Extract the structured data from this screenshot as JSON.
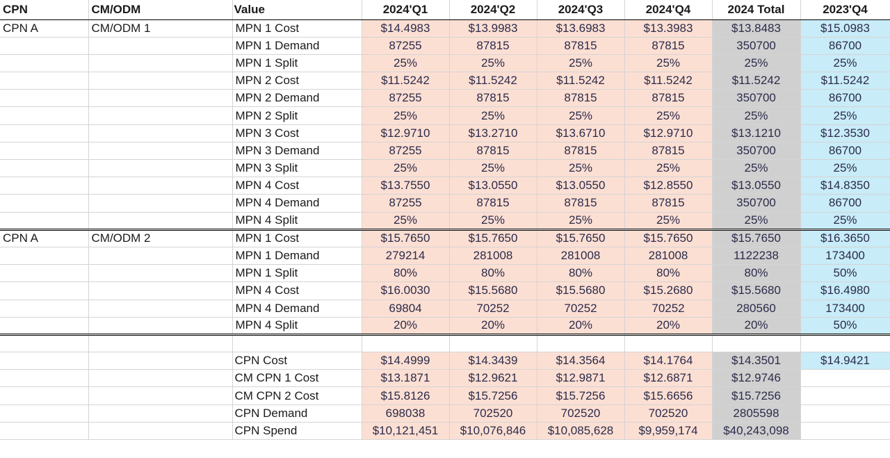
{
  "headers": [
    "CPN",
    "CM/ODM",
    "Value",
    "2024'Q1",
    "2024'Q2",
    "2024'Q3",
    "2024'Q4",
    "2024 Total",
    "2023'Q4"
  ],
  "groups": [
    {
      "cpn": "CPN A",
      "cmodm": "CM/ODM 1",
      "rows": [
        {
          "label": "MPN 1 Cost",
          "q": [
            "$14.4983",
            "$13.9983",
            "$13.6983",
            "$13.3983"
          ],
          "total": "$13.8483",
          "prev": "$15.0983"
        },
        {
          "label": "MPN 1 Demand",
          "q": [
            "87255",
            "87815",
            "87815",
            "87815"
          ],
          "total": "350700",
          "prev": "86700"
        },
        {
          "label": "MPN 1 Split",
          "q": [
            "25%",
            "25%",
            "25%",
            "25%"
          ],
          "total": "25%",
          "prev": "25%"
        },
        {
          "label": "MPN 2 Cost",
          "q": [
            "$11.5242",
            "$11.5242",
            "$11.5242",
            "$11.5242"
          ],
          "total": "$11.5242",
          "prev": "$11.5242"
        },
        {
          "label": "MPN 2 Demand",
          "q": [
            "87255",
            "87815",
            "87815",
            "87815"
          ],
          "total": "350700",
          "prev": "86700"
        },
        {
          "label": "MPN 2 Split",
          "q": [
            "25%",
            "25%",
            "25%",
            "25%"
          ],
          "total": "25%",
          "prev": "25%"
        },
        {
          "label": "MPN 3 Cost",
          "q": [
            "$12.9710",
            "$13.2710",
            "$13.6710",
            "$12.9710"
          ],
          "total": "$13.1210",
          "prev": "$12.3530"
        },
        {
          "label": "MPN 3 Demand",
          "q": [
            "87255",
            "87815",
            "87815",
            "87815"
          ],
          "total": "350700",
          "prev": "86700"
        },
        {
          "label": "MPN 3 Split",
          "q": [
            "25%",
            "25%",
            "25%",
            "25%"
          ],
          "total": "25%",
          "prev": "25%"
        },
        {
          "label": "MPN 4 Cost",
          "q": [
            "$13.7550",
            "$13.0550",
            "$13.0550",
            "$12.8550"
          ],
          "total": "$13.0550",
          "prev": "$14.8350"
        },
        {
          "label": "MPN 4 Demand",
          "q": [
            "87255",
            "87815",
            "87815",
            "87815"
          ],
          "total": "350700",
          "prev": "86700"
        },
        {
          "label": "MPN 4 Split",
          "q": [
            "25%",
            "25%",
            "25%",
            "25%"
          ],
          "total": "25%",
          "prev": "25%"
        }
      ]
    },
    {
      "cpn": "CPN A",
      "cmodm": "CM/ODM 2",
      "rows": [
        {
          "label": "MPN 1 Cost",
          "q": [
            "$15.7650",
            "$15.7650",
            "$15.7650",
            "$15.7650"
          ],
          "total": "$15.7650",
          "prev": "$16.3650"
        },
        {
          "label": "MPN 1 Demand",
          "q": [
            "279214",
            "281008",
            "281008",
            "281008"
          ],
          "total": "1122238",
          "prev": "173400"
        },
        {
          "label": "MPN 1 Split",
          "q": [
            "80%",
            "80%",
            "80%",
            "80%"
          ],
          "total": "80%",
          "prev": "50%"
        },
        {
          "label": "MPN 4 Cost",
          "q": [
            "$16.0030",
            "$15.5680",
            "$15.5680",
            "$15.2680"
          ],
          "total": "$15.5680",
          "prev": "$16.4980"
        },
        {
          "label": "MPN 4 Demand",
          "q": [
            "69804",
            "70252",
            "70252",
            "70252"
          ],
          "total": "280560",
          "prev": "173400"
        },
        {
          "label": "MPN 4 Split",
          "q": [
            "20%",
            "20%",
            "20%",
            "20%"
          ],
          "total": "20%",
          "prev": "50%"
        }
      ]
    }
  ],
  "summary": [
    {
      "label": "CPN Cost",
      "q": [
        "$14.4999",
        "$14.3439",
        "$14.3564",
        "$14.1764"
      ],
      "total": "$14.3501",
      "prev": "$14.9421"
    },
    {
      "label": "CM CPN 1 Cost",
      "q": [
        "$13.1871",
        "$12.9621",
        "$12.9871",
        "$12.6871"
      ],
      "total": "$12.9746",
      "prev": ""
    },
    {
      "label": "CM CPN 2 Cost",
      "q": [
        "$15.8126",
        "$15.7256",
        "$15.7256",
        "$15.6656"
      ],
      "total": "$15.7256",
      "prev": ""
    },
    {
      "label": "CPN Demand",
      "q": [
        "698038",
        "702520",
        "702520",
        "702520"
      ],
      "total": "2805598",
      "prev": ""
    },
    {
      "label": "CPN Spend",
      "q": [
        "$10,121,451",
        "$10,076,846",
        "$10,085,628",
        "$9,959,174"
      ],
      "total": "$40,243,098",
      "prev": ""
    }
  ],
  "colors": {
    "quarter_fill": "#fcdfd3",
    "total_fill": "#d0d0d0",
    "prev_fill": "#c8ecf8"
  }
}
